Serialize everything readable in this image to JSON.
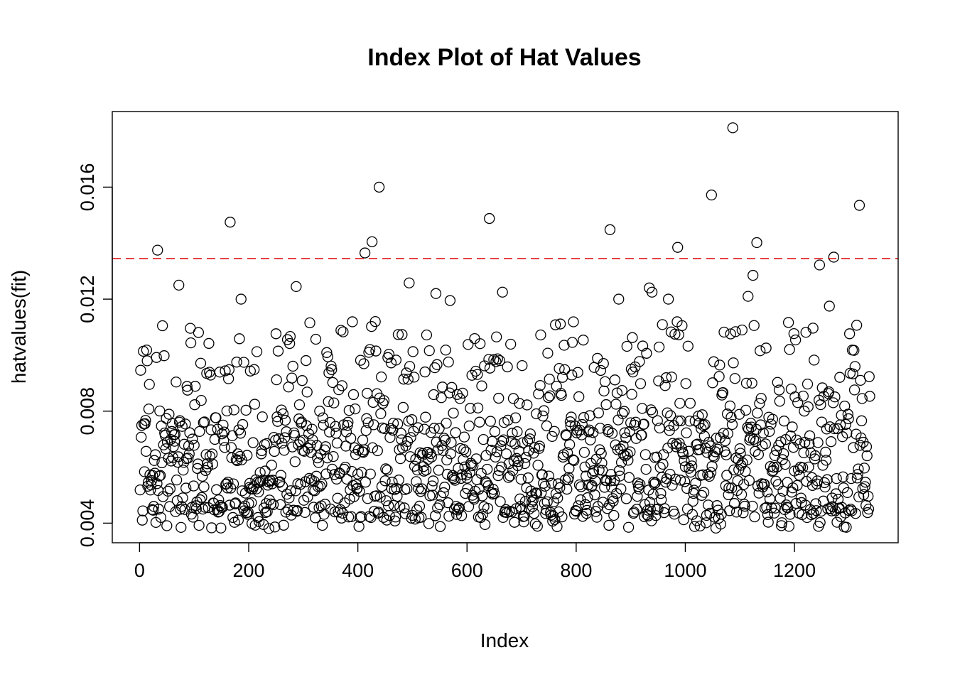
{
  "chart_data": {
    "type": "scatter",
    "title": "Index Plot of Hat Values",
    "xlabel": "Index",
    "ylabel": "hatvalues(fit)",
    "xlim": [
      -50,
      1390
    ],
    "ylim": [
      0.0033,
      0.0187
    ],
    "x_ticks": [
      0,
      200,
      400,
      600,
      800,
      1000,
      1200
    ],
    "x_tick_labels": [
      "0",
      "200",
      "400",
      "600",
      "800",
      "1000",
      "1200"
    ],
    "y_ticks": [
      0.004,
      0.008,
      0.012,
      0.016
    ],
    "y_tick_labels": [
      "0.004",
      "0.008",
      "0.012",
      "0.016"
    ],
    "grid": false,
    "legend": "none",
    "n_points": 1338,
    "reference_line": {
      "y": 0.01345,
      "color": "#e41a1c",
      "style": "dashed"
    },
    "marker": {
      "shape": "open-circle",
      "color": "#000000"
    },
    "highlighted_points": [
      {
        "x": 33,
        "y": 0.01375
      },
      {
        "x": 166,
        "y": 0.01475
      },
      {
        "x": 72,
        "y": 0.0125
      },
      {
        "x": 186,
        "y": 0.012
      },
      {
        "x": 287,
        "y": 0.01245
      },
      {
        "x": 413,
        "y": 0.01365
      },
      {
        "x": 426,
        "y": 0.01405
      },
      {
        "x": 439,
        "y": 0.016
      },
      {
        "x": 494,
        "y": 0.01258
      },
      {
        "x": 543,
        "y": 0.0122
      },
      {
        "x": 569,
        "y": 0.01195
      },
      {
        "x": 641,
        "y": 0.01488
      },
      {
        "x": 665,
        "y": 0.01225
      },
      {
        "x": 862,
        "y": 0.01448
      },
      {
        "x": 878,
        "y": 0.012
      },
      {
        "x": 934,
        "y": 0.0124
      },
      {
        "x": 939,
        "y": 0.01225
      },
      {
        "x": 969,
        "y": 0.012
      },
      {
        "x": 986,
        "y": 0.01385
      },
      {
        "x": 1048,
        "y": 0.01572
      },
      {
        "x": 1087,
        "y": 0.01812
      },
      {
        "x": 1115,
        "y": 0.0121
      },
      {
        "x": 1124,
        "y": 0.01285
      },
      {
        "x": 1131,
        "y": 0.01402
      },
      {
        "x": 1246,
        "y": 0.01322
      },
      {
        "x": 1264,
        "y": 0.01175
      },
      {
        "x": 1272,
        "y": 0.0135
      },
      {
        "x": 1319,
        "y": 0.01535
      }
    ],
    "bulk_distribution": {
      "x_range": [
        1,
        1338
      ],
      "y_min": 0.0038,
      "y_main_band": [
        0.0042,
        0.0075
      ],
      "y_upper_band": [
        0.0075,
        0.0112
      ],
      "seed": 7
    }
  },
  "colors": {
    "background": "#ffffff",
    "foreground": "#000000",
    "reference_line": "#e41a1c"
  }
}
